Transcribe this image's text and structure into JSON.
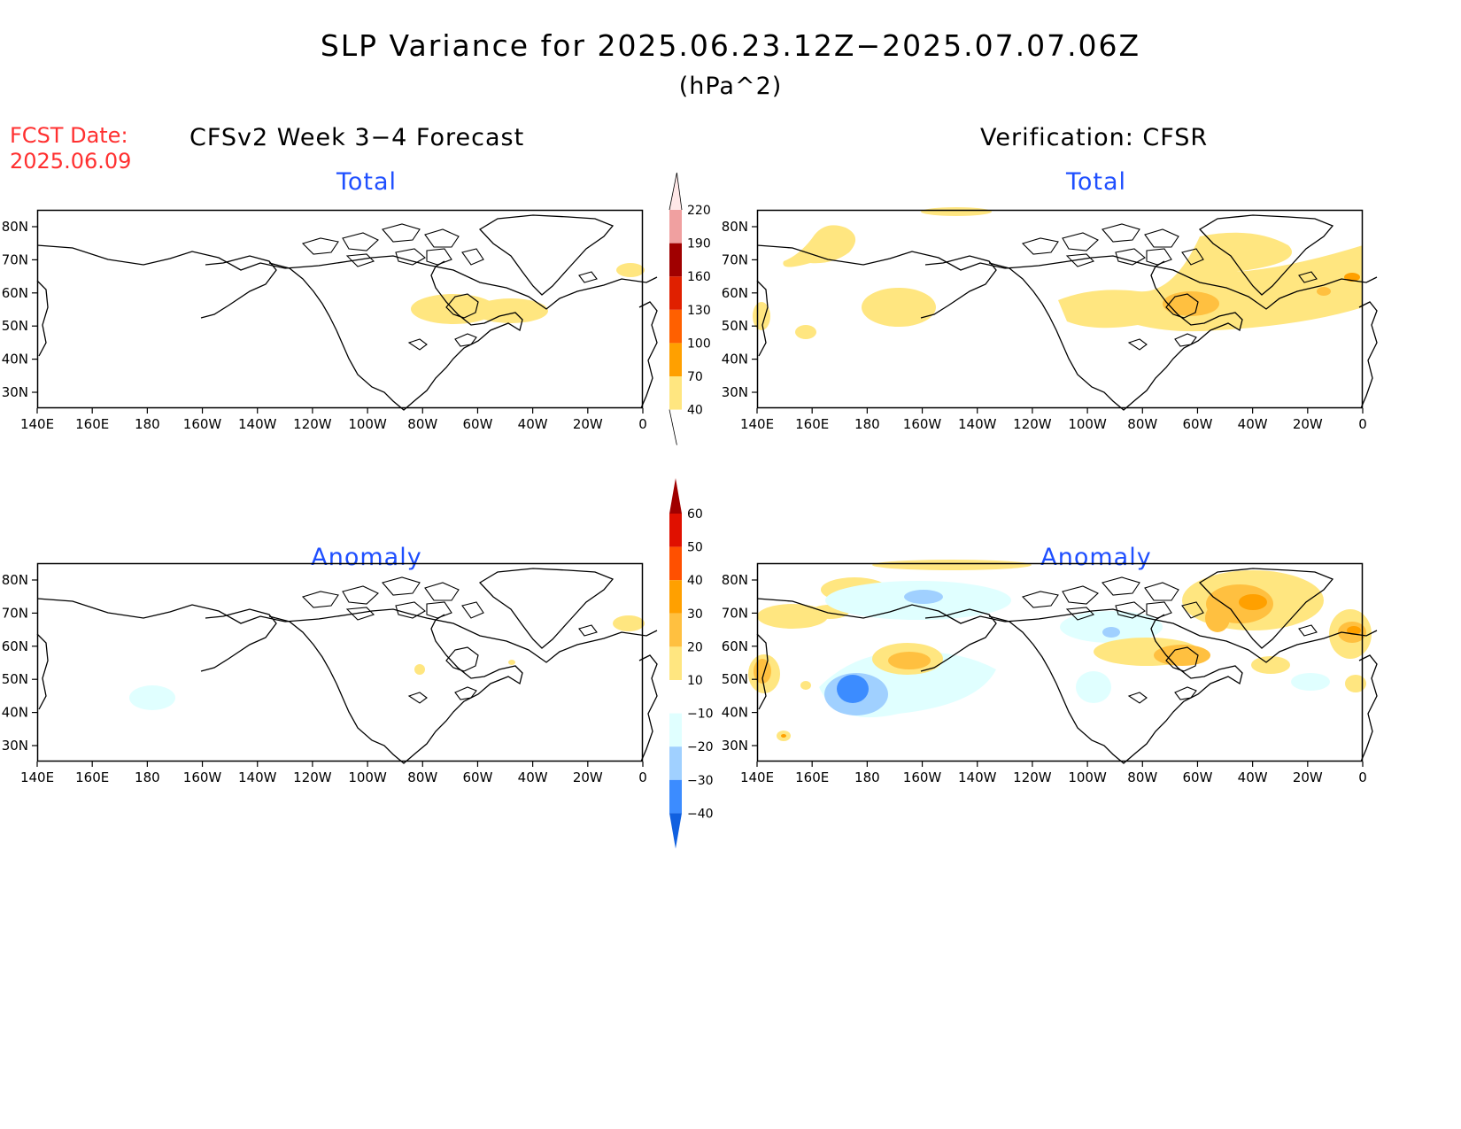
{
  "header": {
    "title": "SLP Variance for 2025.06.23.12Z−2025.07.07.06Z",
    "units": "(hPa^2)",
    "fcst_label": "FCST Date:",
    "fcst_date": "2025.06.09",
    "left_column": "CFSv2 Week 3−4 Forecast",
    "right_column": "Verification: CFSR"
  },
  "axes": {
    "lat_ticks": [
      "80N",
      "70N",
      "60N",
      "50N",
      "40N",
      "30N"
    ],
    "lon_ticks": [
      "140E",
      "160E",
      "180",
      "160W",
      "140W",
      "120W",
      "100W",
      "80W",
      "60W",
      "40W",
      "20W",
      "0"
    ]
  },
  "colors": {
    "map_outline": "#000000",
    "panel_title": "#1f4fff",
    "fcst_date": "#ff3030"
  },
  "colorbars": {
    "total": {
      "labels": [
        "40",
        "70",
        "100",
        "130",
        "160",
        "190",
        "220"
      ],
      "colors": [
        "#ffe680",
        "#ffa000",
        "#ff6000",
        "#e02000",
        "#a00000",
        "#f0a0a0",
        "#ffe8e8"
      ]
    },
    "anomaly": {
      "labels": [
        "60",
        "50",
        "40",
        "30",
        "20",
        "10",
        "−10",
        "−20",
        "−30",
        "−40"
      ],
      "colors": [
        "#a00000",
        "#e01000",
        "#ff5000",
        "#ffa000",
        "#ffc040",
        "#ffe680",
        "#ffffff",
        "#e0ffff",
        "#a0d0ff",
        "#3c8cff",
        "#1060e0"
      ]
    }
  },
  "panels": [
    {
      "id": "fcst-total",
      "title": "Total"
    },
    {
      "id": "verif-total",
      "title": "Total"
    },
    {
      "id": "fcst-anomaly",
      "title": "Anomaly"
    },
    {
      "id": "verif-anomaly",
      "title": "Anomaly"
    }
  ]
}
